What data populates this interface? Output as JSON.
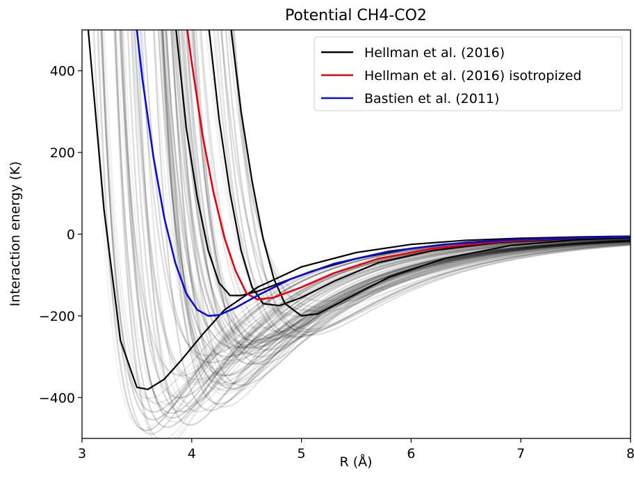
{
  "chart_data": {
    "type": "line",
    "title": "Potential CH4-CO2",
    "xlabel": "R (Å)",
    "ylabel": "Interaction energy (K)",
    "xlim": [
      3,
      8
    ],
    "ylim": [
      -500,
      500
    ],
    "xticks": [
      3,
      4,
      5,
      6,
      7,
      8
    ],
    "yticks": [
      -400,
      -200,
      0,
      200,
      400
    ],
    "ytick_labels": [
      "−400",
      "−200",
      "0",
      "200",
      "400"
    ],
    "grid": false,
    "legend_position": "top-right",
    "colors": {
      "hellman": "#000000",
      "hellman_iso": "#e8000b",
      "bastien": "#0a0ad6"
    },
    "series": [
      {
        "name": "Hellman et al. (2016)",
        "color": "#000000",
        "x": [
          3.05,
          3.2,
          3.35,
          3.5,
          3.6,
          3.75,
          3.9,
          4.1,
          4.3,
          4.6,
          5.0,
          5.5,
          6.0,
          6.5,
          7.0,
          7.5,
          8.0
        ],
        "y": [
          520,
          60,
          -260,
          -375,
          -380,
          -355,
          -310,
          -245,
          -185,
          -130,
          -80,
          -45,
          -25,
          -15,
          -10,
          -7,
          -5
        ]
      },
      {
        "name": "",
        "color": "#000000",
        "x": [
          3.85,
          3.95,
          4.05,
          4.15,
          4.25,
          4.35,
          4.45,
          4.6,
          4.8,
          5.1,
          5.5,
          6.0,
          6.5,
          7.0,
          8.0
        ],
        "y": [
          520,
          260,
          90,
          -40,
          -120,
          -150,
          -150,
          -140,
          -120,
          -90,
          -60,
          -35,
          -20,
          -12,
          -6
        ]
      },
      {
        "name": "",
        "color": "#000000",
        "x": [
          4.15,
          4.25,
          4.35,
          4.45,
          4.55,
          4.65,
          4.8,
          5.0,
          5.3,
          5.7,
          6.2,
          6.8,
          7.5,
          8.0
        ],
        "y": [
          520,
          280,
          100,
          -40,
          -130,
          -170,
          -175,
          -155,
          -115,
          -70,
          -40,
          -20,
          -10,
          -6
        ]
      },
      {
        "name": "",
        "color": "#000000",
        "x": [
          4.35,
          4.45,
          4.55,
          4.65,
          4.75,
          4.85,
          5.0,
          5.15,
          5.4,
          5.8,
          6.3,
          6.9,
          7.5,
          8.0
        ],
        "y": [
          520,
          300,
          130,
          -10,
          -110,
          -170,
          -200,
          -195,
          -160,
          -105,
          -60,
          -28,
          -14,
          -8
        ]
      },
      {
        "name": "Hellman et al. (2016) isotropized",
        "color": "#e8000b",
        "x": [
          3.95,
          4.0,
          4.1,
          4.2,
          4.3,
          4.4,
          4.5,
          4.6,
          4.75,
          5.0,
          5.3,
          5.7,
          6.2,
          6.8,
          7.4,
          8.0
        ],
        "y": [
          520,
          420,
          240,
          100,
          -10,
          -90,
          -145,
          -160,
          -155,
          -130,
          -95,
          -60,
          -35,
          -18,
          -10,
          -6
        ]
      },
      {
        "name": "Bastien et al. (2011)",
        "color": "#0a0ad6",
        "x": [
          3.5,
          3.55,
          3.65,
          3.75,
          3.85,
          3.95,
          4.05,
          4.15,
          4.25,
          4.4,
          4.6,
          4.9,
          5.3,
          5.8,
          6.3,
          6.9,
          7.5,
          8.0
        ],
        "y": [
          500,
          380,
          190,
          40,
          -70,
          -145,
          -185,
          -200,
          -198,
          -180,
          -150,
          -110,
          -72,
          -42,
          -25,
          -14,
          -9,
          -6
        ]
      }
    ],
    "legend": [
      {
        "label": "Hellman et al. (2016)",
        "color": "#000000"
      },
      {
        "label": "Hellman et al. (2016) isotropized",
        "color": "#e8000b"
      },
      {
        "label": "Bastien et al. (2011)",
        "color": "#0a0ad6"
      }
    ],
    "background_ensemble": {
      "color": "#000000",
      "description_count": 90,
      "r_zero_range": [
        3.2,
        4.7
      ],
      "well_depth_range": [
        -400,
        -150
      ]
    }
  }
}
